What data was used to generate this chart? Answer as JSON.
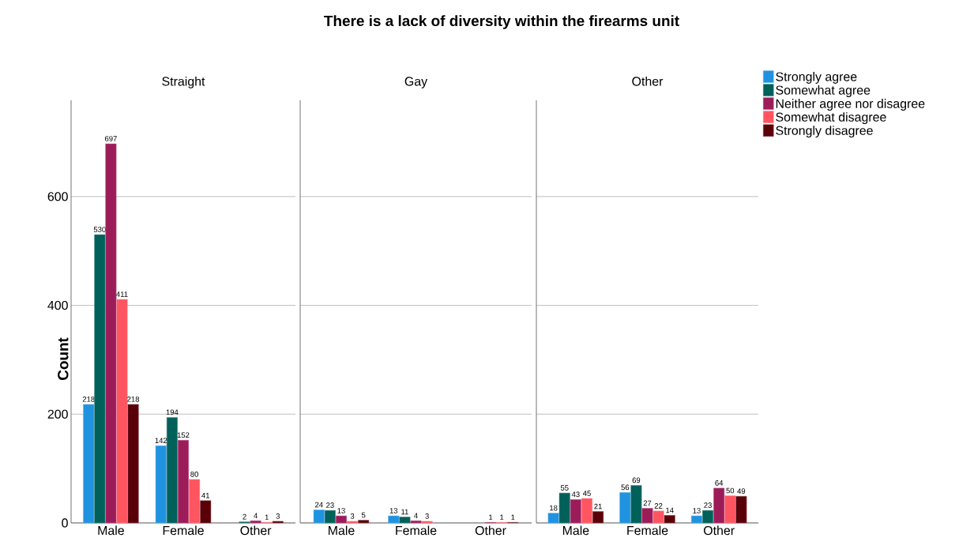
{
  "chart_data": [
    {
      "type": "bar",
      "subtitle": "Straight",
      "ylabel": "Count",
      "categories": [
        "Male",
        "Female",
        "Other"
      ],
      "ylim": [
        0,
        777
      ],
      "yticks": [
        0,
        200,
        400,
        600
      ],
      "grid": "y",
      "data_labels": true,
      "series": [
        {
          "color": "#1f93e0",
          "values": [
            218,
            142,
            null
          ]
        },
        {
          "color": "#00605a",
          "values": [
            530,
            194,
            2
          ]
        },
        {
          "color": "#9c1c5a",
          "values": [
            697,
            152,
            4
          ]
        },
        {
          "color": "#ff5561",
          "values": [
            411,
            80,
            1
          ]
        },
        {
          "color": "#5a0008",
          "values": [
            218,
            41,
            3
          ]
        }
      ]
    },
    {
      "type": "bar",
      "title": "There is a lack of diversity within the firearms unit",
      "subtitle": "Gay",
      "categories": [
        "Male",
        "Female",
        "Other"
      ],
      "ylim": [
        0,
        777
      ],
      "yticks": [
        0,
        200,
        400,
        600
      ],
      "grid": "y",
      "data_labels": true,
      "tick_labels": "x",
      "series": [
        {
          "color": "#1f93e0",
          "values": [
            24,
            13,
            null
          ]
        },
        {
          "color": "#00605a",
          "values": [
            23,
            11,
            null
          ]
        },
        {
          "color": "#9c1c5a",
          "values": [
            13,
            4,
            1
          ]
        },
        {
          "color": "#ff5561",
          "values": [
            3,
            3,
            1
          ]
        },
        {
          "color": "#5a0008",
          "values": [
            5,
            null,
            1
          ]
        }
      ]
    },
    {
      "type": "bar",
      "subtitle": "Other",
      "categories": [
        "Male",
        "Female",
        "Other"
      ],
      "ylim": [
        0,
        777
      ],
      "yticks": [
        0,
        200,
        400,
        600
      ],
      "grid": "y",
      "data_labels": true,
      "tick_labels": "x",
      "legend": "right",
      "series": [
        {
          "name": "Strongly agree",
          "color": "#1f93e0",
          "values": [
            18,
            56,
            13
          ]
        },
        {
          "name": "Somewhat agree",
          "color": "#00605a",
          "values": [
            55,
            69,
            23
          ]
        },
        {
          "name": "Neither agree nor disagree",
          "color": "#9c1c5a",
          "values": [
            43,
            27,
            64
          ]
        },
        {
          "name": "Somewhat disagree",
          "color": "#ff5561",
          "values": [
            45,
            22,
            50
          ]
        },
        {
          "name": "Strongly disagree",
          "color": "#5a0008",
          "values": [
            21,
            14,
            49
          ]
        }
      ]
    }
  ]
}
